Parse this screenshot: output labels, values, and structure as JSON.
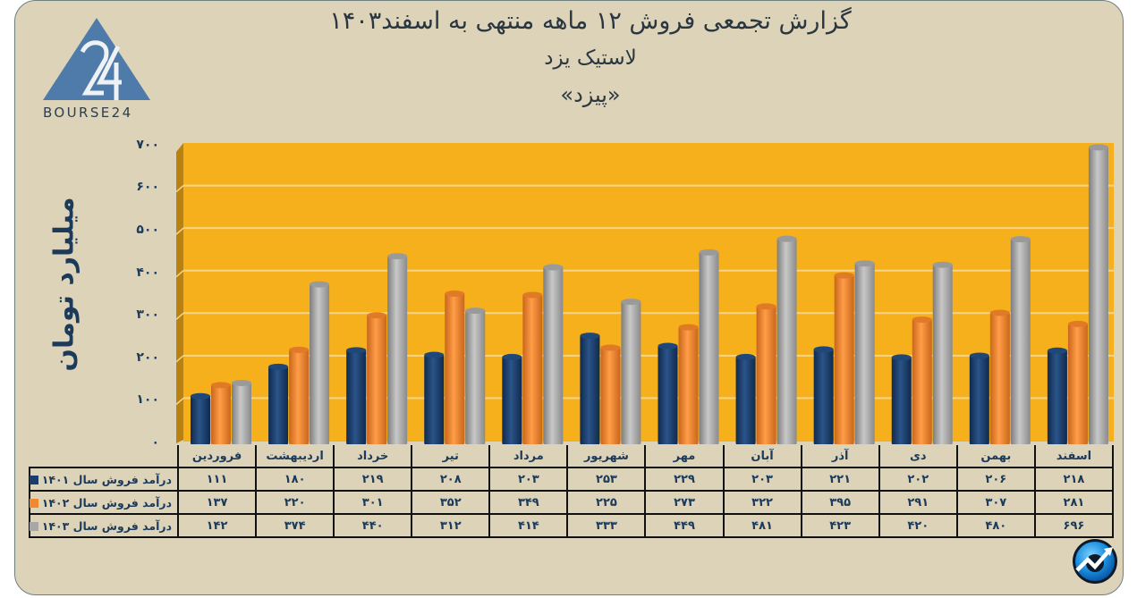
{
  "header": {
    "title_line1": "گزارش تجمعی فروش ۱۲ ماهه منتهی به اسفند۱۴۰۳",
    "title_line2": "لاستیک یزد",
    "title_line3": "«پیزد»"
  },
  "logo": {
    "text": "BOURSE24",
    "mark": "24"
  },
  "colors": {
    "background": "#ddd3b9",
    "plot_background": "#f5b01b",
    "series_1401": "#1b3d6b",
    "series_1402": "#f08a2e",
    "series_1403": "#a7a7a7",
    "axis_text": "#1c3a5a"
  },
  "y_axis": {
    "label": "میلیارد تومان",
    "ticks": [
      "۰",
      "۱۰۰",
      "۲۰۰",
      "۳۰۰",
      "۴۰۰",
      "۵۰۰",
      "۶۰۰",
      "۷۰۰"
    ]
  },
  "table": {
    "months": [
      "فروردین",
      "اردیبهشت",
      "خرداد",
      "تیر",
      "مرداد",
      "شهریور",
      "مهر",
      "آبان",
      "آذر",
      "دی",
      "بهمن",
      "اسفند"
    ],
    "rows": [
      {
        "label": "درآمد فروش سال ۱۴۰۱",
        "values": [
          "۱۱۱",
          "۱۸۰",
          "۲۱۹",
          "۲۰۸",
          "۲۰۳",
          "۲۵۳",
          "۲۲۹",
          "۲۰۳",
          "۲۲۱",
          "۲۰۲",
          "۲۰۶",
          "۲۱۸"
        ]
      },
      {
        "label": "درآمد فروش سال ۱۴۰۲",
        "values": [
          "۱۳۷",
          "۲۲۰",
          "۳۰۱",
          "۳۵۲",
          "۳۴۹",
          "۲۲۵",
          "۲۷۳",
          "۳۲۲",
          "۳۹۵",
          "۲۹۱",
          "۳۰۷",
          "۲۸۱"
        ]
      },
      {
        "label": "درآمد فروش سال ۱۴۰۳",
        "values": [
          "۱۴۲",
          "۳۷۴",
          "۴۴۰",
          "۳۱۲",
          "۴۱۴",
          "۳۳۳",
          "۴۴۹",
          "۴۸۱",
          "۴۲۳",
          "۴۲۰",
          "۴۸۰",
          "۶۹۶"
        ]
      }
    ]
  },
  "badge": {
    "icon": "trend-up-arrow-icon"
  },
  "chart_data": {
    "type": "bar",
    "title": "گزارش تجمعی فروش ۱۲ ماهه منتهی به اسفند۱۴۰۳ - لاستیک یزد «پیزد»",
    "xlabel": "",
    "ylabel": "میلیارد تومان",
    "ylim": [
      0,
      700
    ],
    "grid": true,
    "legend_position": "table-left",
    "categories": [
      "فروردین",
      "اردیبهشت",
      "خرداد",
      "تیر",
      "مرداد",
      "شهریور",
      "مهر",
      "آبان",
      "آذر",
      "دی",
      "بهمن",
      "اسفند"
    ],
    "series": [
      {
        "name": "درآمد فروش سال ۱۴۰۱",
        "color": "#1b3d6b",
        "values": [
          111,
          180,
          219,
          208,
          203,
          253,
          229,
          203,
          221,
          202,
          206,
          218
        ]
      },
      {
        "name": "درآمد فروش سال ۱۴۰۲",
        "color": "#f08a2e",
        "values": [
          137,
          220,
          301,
          352,
          349,
          225,
          273,
          322,
          395,
          291,
          307,
          281
        ]
      },
      {
        "name": "درآمد فروش سال ۱۴۰۳",
        "color": "#a7a7a7",
        "values": [
          142,
          374,
          440,
          312,
          414,
          333,
          449,
          481,
          423,
          420,
          480,
          696
        ]
      }
    ]
  }
}
